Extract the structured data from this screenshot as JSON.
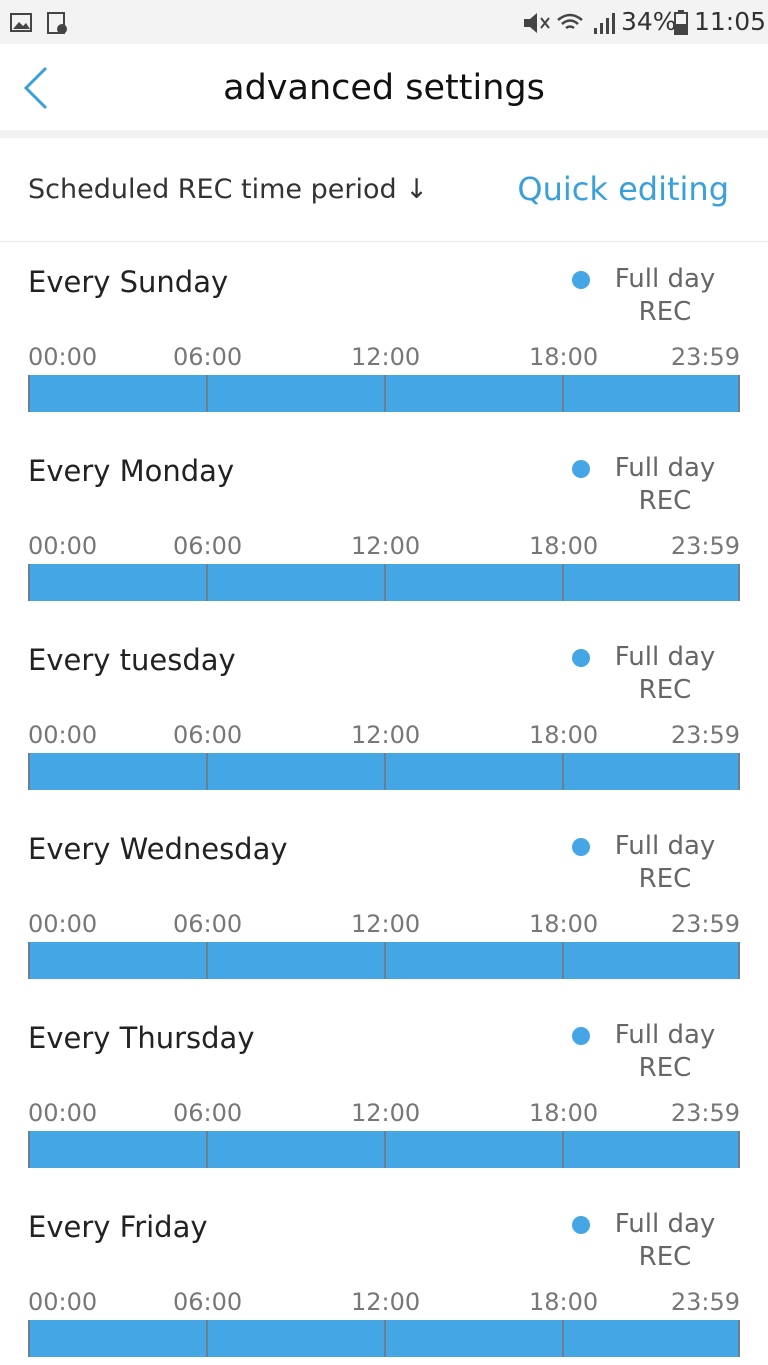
{
  "status_bar": {
    "battery": "34%",
    "time": "11:05"
  },
  "header": {
    "title": "advanced settings"
  },
  "section": {
    "label": "Scheduled REC time period ↓",
    "action": "Quick editing"
  },
  "timeline_ticks": [
    "00:00",
    "06:00",
    "12:00",
    "18:00",
    "23:59"
  ],
  "days": [
    {
      "label": "Every Sunday",
      "status": "Full day REC"
    },
    {
      "label": "Every Monday",
      "status": "Full day REC"
    },
    {
      "label": "Every tuesday",
      "status": "Full day REC"
    },
    {
      "label": "Every Wednesday",
      "status": "Full day REC"
    },
    {
      "label": "Every Thursday",
      "status": "Full day REC"
    },
    {
      "label": "Every Friday",
      "status": "Full day REC"
    }
  ]
}
